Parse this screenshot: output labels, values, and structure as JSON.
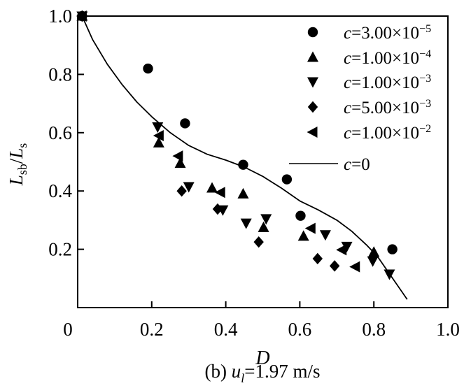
{
  "figure": {
    "background": "#ffffff",
    "ink_color": "#000000",
    "caption": {
      "prefix": "(b) ",
      "variable": "u",
      "subscript": "l",
      "suffix": "=1.97 m/s"
    }
  },
  "chart_data": {
    "type": "scatter",
    "title": "",
    "xlabel": "D",
    "ylabel_parts": {
      "l1": "L",
      "sub1": "sb",
      "slash": "/",
      "l2": "L",
      "sub2": "s"
    },
    "xlim": [
      0,
      1.0
    ],
    "ylim": [
      0,
      1.0
    ],
    "grid": false,
    "legend_position": "top-right-inside",
    "x_ticks": [
      {
        "v": 0.0,
        "label": "0"
      },
      {
        "v": 0.2,
        "label": "0.2"
      },
      {
        "v": 0.4,
        "label": "0.4"
      },
      {
        "v": 0.6,
        "label": "0.6"
      },
      {
        "v": 0.8,
        "label": "0.8"
      },
      {
        "v": 1.0,
        "label": "1.0"
      }
    ],
    "y_ticks": [
      {
        "v": 1.0,
        "label": "1.0"
      },
      {
        "v": 0.8,
        "label": "0.8"
      },
      {
        "v": 0.6,
        "label": "0.6"
      },
      {
        "v": 0.4,
        "label": "0.4"
      },
      {
        "v": 0.2,
        "label": "0.2"
      }
    ],
    "series": [
      {
        "marker": "circle",
        "label_prefix": "c",
        "label_value": "=3.00×10",
        "label_exp": "−5",
        "points": [
          [
            0.012,
            1.0
          ],
          [
            0.19,
            0.82
          ],
          [
            0.29,
            0.632
          ],
          [
            0.447,
            0.49
          ],
          [
            0.565,
            0.44
          ],
          [
            0.602,
            0.315
          ],
          [
            0.85,
            0.2
          ]
        ]
      },
      {
        "marker": "triangle-up",
        "label_prefix": "c",
        "label_value": "=1.00×10",
        "label_exp": "−4",
        "points": [
          [
            0.012,
            1.0
          ],
          [
            0.219,
            0.565
          ],
          [
            0.277,
            0.495
          ],
          [
            0.363,
            0.41
          ],
          [
            0.447,
            0.39
          ],
          [
            0.502,
            0.275
          ],
          [
            0.61,
            0.245
          ],
          [
            0.8,
            0.19
          ]
        ]
      },
      {
        "marker": "triangle-down",
        "label_prefix": "c",
        "label_value": "=1.00×10",
        "label_exp": "−3",
        "points": [
          [
            0.012,
            1.0
          ],
          [
            0.216,
            0.62
          ],
          [
            0.3,
            0.415
          ],
          [
            0.392,
            0.335
          ],
          [
            0.455,
            0.29
          ],
          [
            0.509,
            0.305
          ],
          [
            0.669,
            0.25
          ],
          [
            0.727,
            0.21
          ],
          [
            0.797,
            0.16
          ],
          [
            0.842,
            0.115
          ]
        ]
      },
      {
        "marker": "diamond",
        "label_prefix": "c",
        "label_value": "=5.00×10",
        "label_exp": "−3",
        "points": [
          [
            0.012,
            1.0
          ],
          [
            0.281,
            0.4
          ],
          [
            0.378,
            0.338
          ],
          [
            0.489,
            0.225
          ],
          [
            0.648,
            0.168
          ],
          [
            0.694,
            0.143
          ]
        ]
      },
      {
        "marker": "triangle-left",
        "label_prefix": "c",
        "label_value": "=1.00×10",
        "label_exp": "−2",
        "points": [
          [
            0.012,
            1.0
          ],
          [
            0.22,
            0.59
          ],
          [
            0.272,
            0.52
          ],
          [
            0.386,
            0.395
          ],
          [
            0.63,
            0.272
          ],
          [
            0.714,
            0.198
          ],
          [
            0.75,
            0.14
          ]
        ]
      },
      {
        "marker": "line",
        "label_prefix": "c",
        "label_value": "=0",
        "label_exp": "",
        "points": [
          [
            0.012,
            1.0
          ],
          [
            0.04,
            0.92
          ],
          [
            0.08,
            0.835
          ],
          [
            0.12,
            0.765
          ],
          [
            0.16,
            0.705
          ],
          [
            0.2,
            0.655
          ],
          [
            0.25,
            0.6
          ],
          [
            0.3,
            0.556
          ],
          [
            0.35,
            0.526
          ],
          [
            0.4,
            0.506
          ],
          [
            0.45,
            0.482
          ],
          [
            0.5,
            0.45
          ],
          [
            0.55,
            0.41
          ],
          [
            0.6,
            0.366
          ],
          [
            0.65,
            0.335
          ],
          [
            0.7,
            0.3
          ],
          [
            0.74,
            0.262
          ],
          [
            0.78,
            0.215
          ],
          [
            0.81,
            0.175
          ],
          [
            0.84,
            0.12
          ],
          [
            0.87,
            0.065
          ],
          [
            0.89,
            0.028
          ]
        ]
      }
    ]
  }
}
